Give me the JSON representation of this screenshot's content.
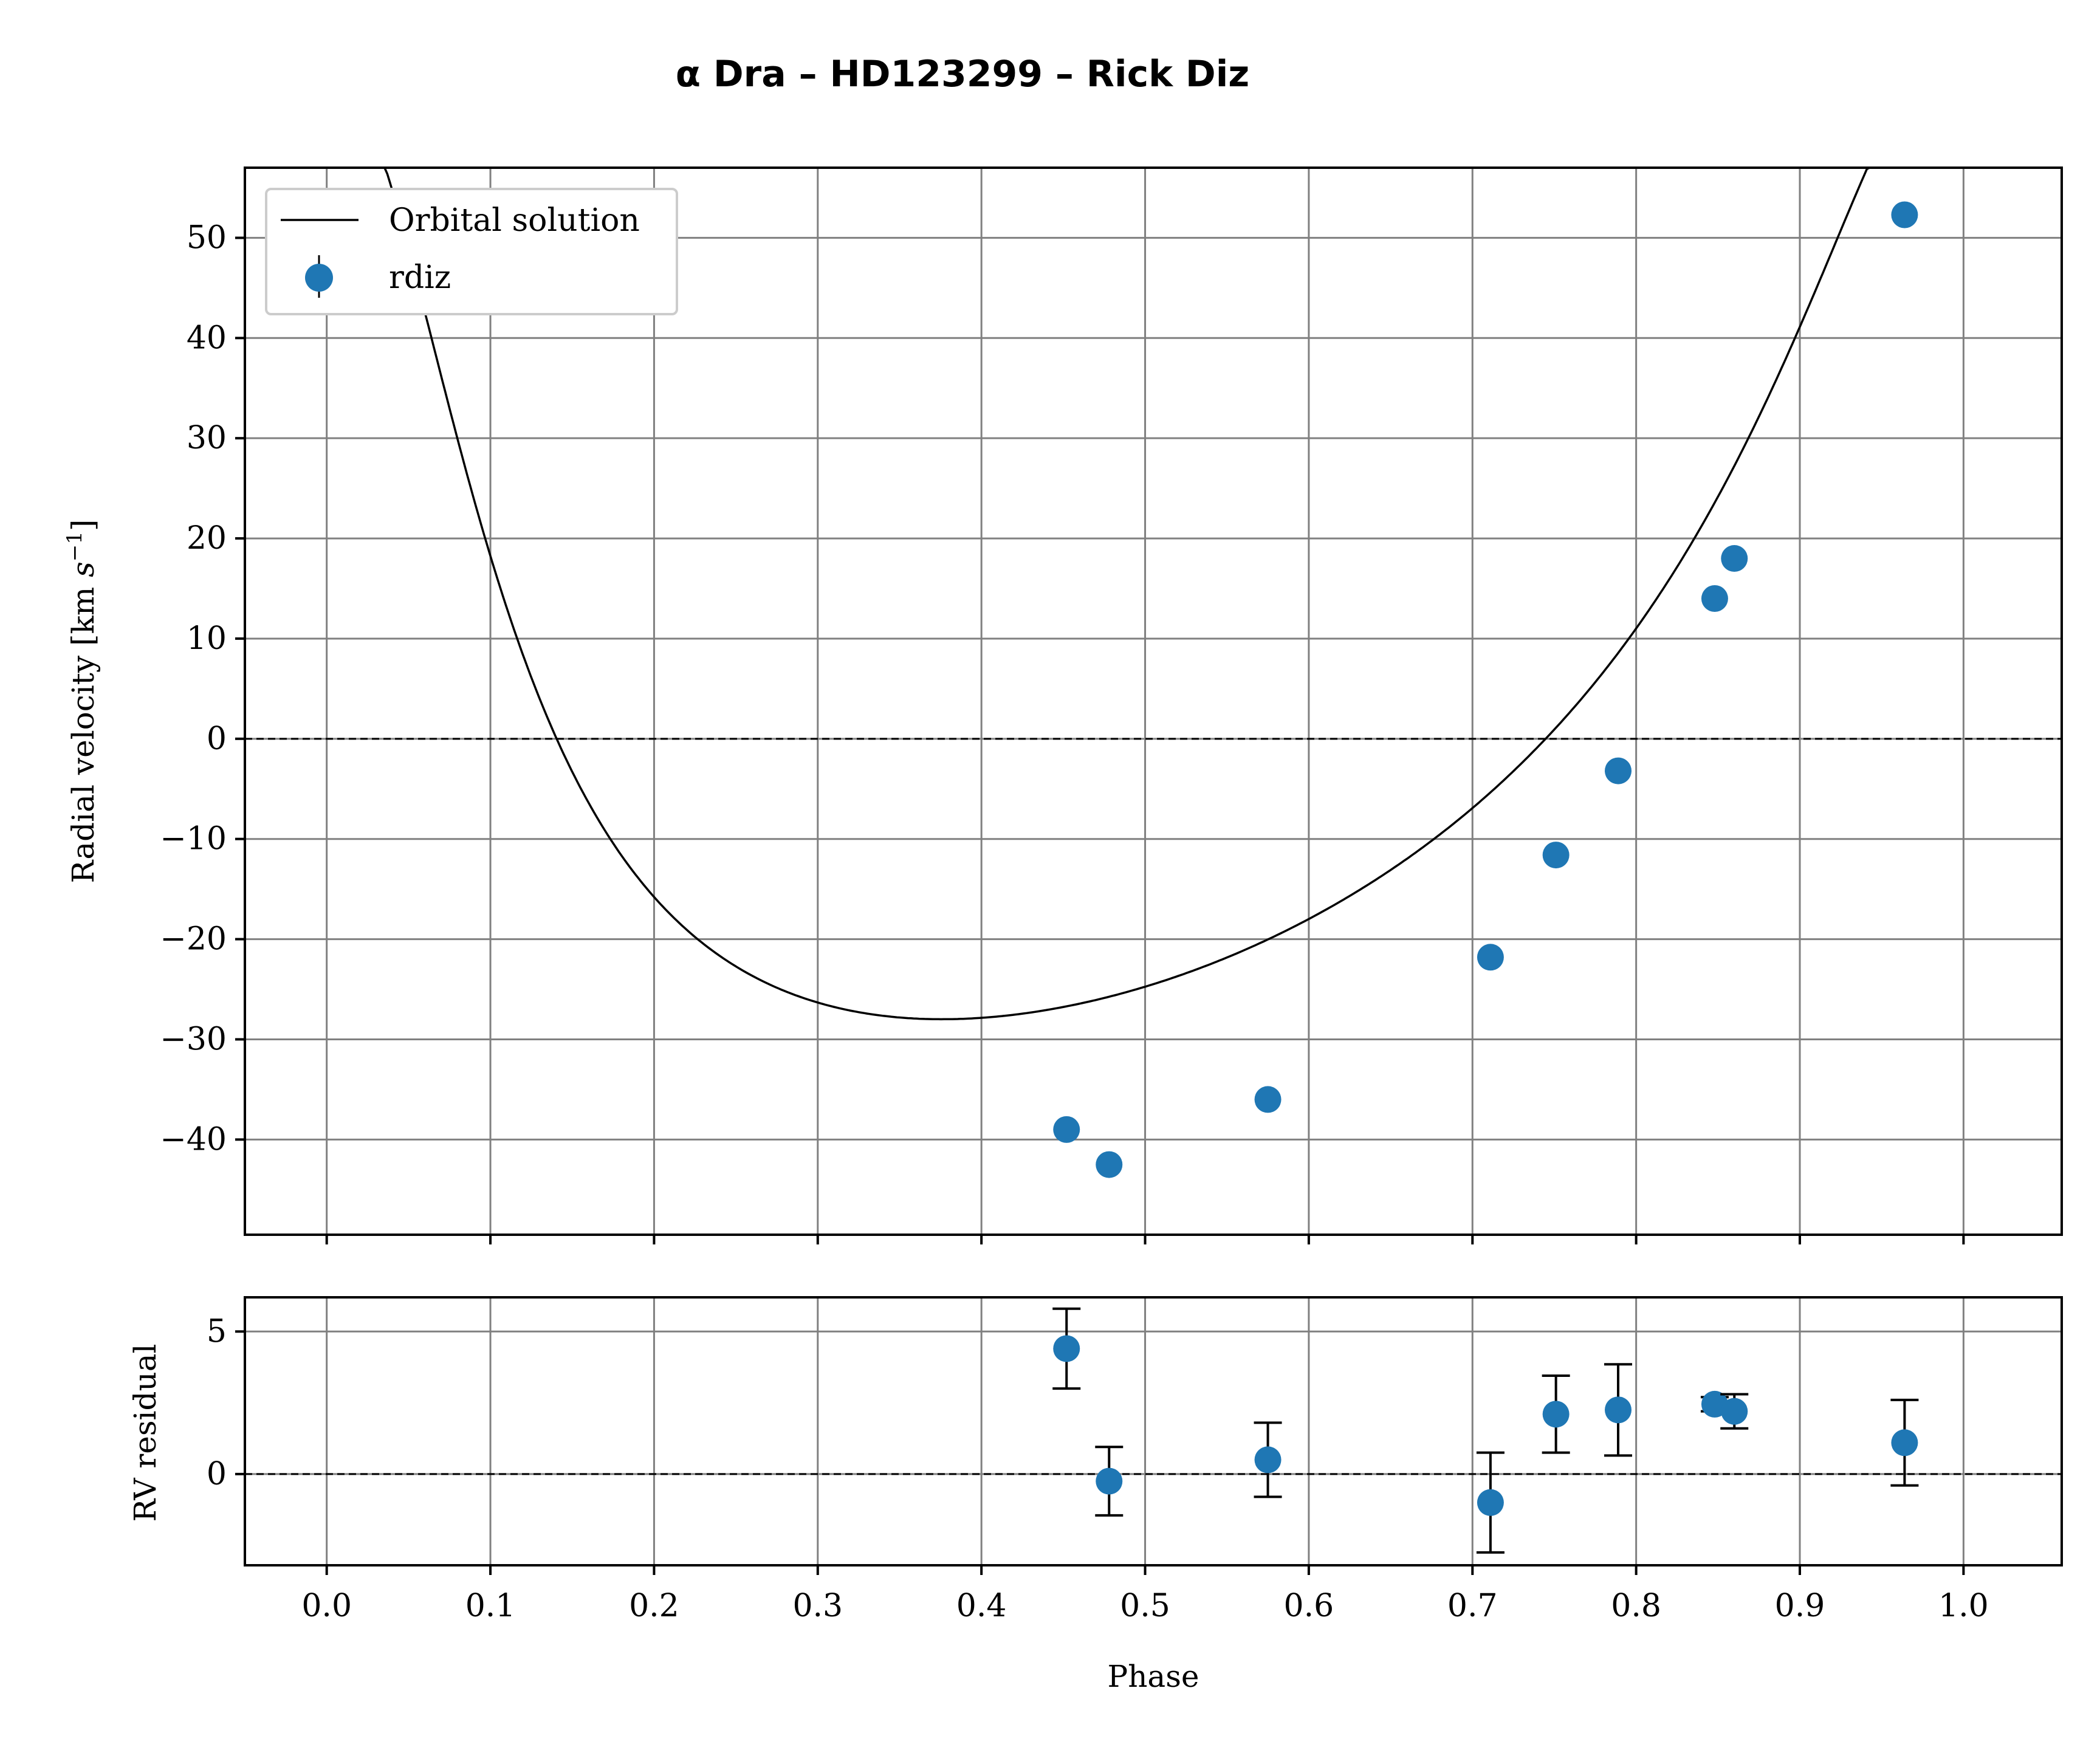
{
  "chart_data": {
    "title": "α Dra – HD123299 – Rick Diz",
    "type": "scatter",
    "xlabel": "Phase",
    "xlim": [
      -0.05,
      1.06
    ],
    "xticks": [
      "0.0",
      "0.1",
      "0.2",
      "0.3",
      "0.4",
      "0.5",
      "0.6",
      "0.7",
      "0.8",
      "0.9",
      "1.0"
    ],
    "legend": {
      "placement": "top-left",
      "entries": [
        "Orbital solution",
        "rdiz"
      ]
    },
    "colors": {
      "points": "#1f77b4",
      "curve": "#000000",
      "grid": "#808080"
    },
    "top_panel": {
      "ylabel": "Radial velocity [km s−1]",
      "ylim": [
        -49.5,
        57
      ],
      "yticks": [
        "50",
        "40",
        "30",
        "20",
        "10",
        "0",
        "−10",
        "−20",
        "−30",
        "−40"
      ],
      "grid": true,
      "orbit": {
        "gamma": 1.9,
        "K": 48.5,
        "e": 0.42,
        "omega_deg": 24,
        "phase_periastron": 0.018
      },
      "curve_x_range": [
        0.0,
        1.01
      ],
      "points": [
        {
          "phase": 0.452,
          "rv": -39.0
        },
        {
          "phase": 0.478,
          "rv": -42.5
        },
        {
          "phase": 0.575,
          "rv": -36.0
        },
        {
          "phase": 0.711,
          "rv": -21.8
        },
        {
          "phase": 0.751,
          "rv": -11.6
        },
        {
          "phase": 0.789,
          "rv": -3.2
        },
        {
          "phase": 0.848,
          "rv": 14.0
        },
        {
          "phase": 0.86,
          "rv": 18.0
        },
        {
          "phase": 0.964,
          "rv": 52.3
        }
      ]
    },
    "bottom_panel": {
      "ylabel": "RV residual",
      "ylim": [
        -3.2,
        6.2
      ],
      "yticks": [
        "5",
        "0"
      ],
      "grid": true,
      "points": [
        {
          "phase": 0.452,
          "residual": 4.4,
          "error": 1.4
        },
        {
          "phase": 0.478,
          "residual": -0.25,
          "error": 1.2
        },
        {
          "phase": 0.575,
          "residual": 0.5,
          "error": 1.3
        },
        {
          "phase": 0.711,
          "residual": -1.0,
          "error": 1.75
        },
        {
          "phase": 0.751,
          "residual": 2.1,
          "error": 1.35
        },
        {
          "phase": 0.789,
          "residual": 2.25,
          "error": 1.6
        },
        {
          "phase": 0.848,
          "residual": 2.45,
          "error": 0.25
        },
        {
          "phase": 0.86,
          "residual": 2.2,
          "error": 0.6
        },
        {
          "phase": 0.964,
          "residual": 1.1,
          "error": 1.5
        }
      ]
    }
  }
}
